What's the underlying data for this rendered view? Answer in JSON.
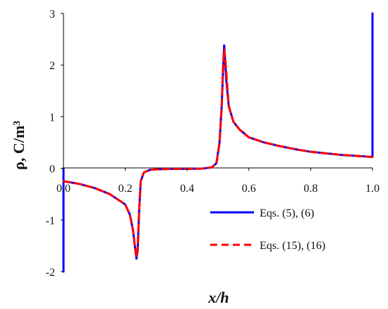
{
  "chart_data": {
    "type": "line",
    "xlabel": "x/h",
    "ylabel": "ρ, C/m³",
    "xlim": [
      0,
      1
    ],
    "ylim": [
      -2,
      3
    ],
    "x_ticks": [
      "0.0",
      "0.2",
      "0.4",
      "0.6",
      "0.8",
      "1.0"
    ],
    "y_ticks": [
      "-2",
      "-1",
      "0",
      "1",
      "2",
      "3"
    ],
    "grid": false,
    "legend": "right-lower",
    "series": [
      {
        "name": "Eqs. (5), (6)",
        "color": "#0000ff",
        "style": "solid",
        "x": [
          0.0,
          0.0,
          0.0,
          0.01,
          0.05,
          0.1,
          0.15,
          0.2,
          0.215,
          0.225,
          0.232,
          0.236,
          0.24,
          0.245,
          0.25,
          0.26,
          0.28,
          0.3,
          0.35,
          0.4,
          0.45,
          0.48,
          0.495,
          0.505,
          0.512,
          0.517,
          0.52,
          0.522,
          0.527,
          0.535,
          0.55,
          0.57,
          0.6,
          0.65,
          0.7,
          0.75,
          0.8,
          0.85,
          0.9,
          0.95,
          0.999,
          1.0,
          1.0
        ],
        "y": [
          -2.0,
          0.0,
          -0.25,
          -0.26,
          -0.3,
          -0.38,
          -0.5,
          -0.7,
          -0.9,
          -1.2,
          -1.55,
          -1.75,
          -1.6,
          -0.8,
          -0.25,
          -0.08,
          -0.03,
          -0.02,
          -0.01,
          -0.01,
          -0.005,
          0.02,
          0.1,
          0.5,
          1.2,
          2.0,
          2.38,
          2.2,
          1.7,
          1.2,
          0.9,
          0.75,
          0.6,
          0.5,
          0.43,
          0.37,
          0.32,
          0.29,
          0.26,
          0.24,
          0.22,
          0.22,
          3.0
        ]
      },
      {
        "name": "Eqs. (15), (16)",
        "color": "#ff0000",
        "style": "dashed",
        "x": [
          0.0,
          0.01,
          0.05,
          0.1,
          0.15,
          0.2,
          0.215,
          0.225,
          0.232,
          0.236,
          0.24,
          0.245,
          0.25,
          0.26,
          0.28,
          0.3,
          0.35,
          0.4,
          0.45,
          0.48,
          0.495,
          0.505,
          0.512,
          0.516,
          0.52,
          0.524,
          0.53,
          0.535,
          0.55,
          0.57,
          0.6,
          0.65,
          0.7,
          0.75,
          0.8,
          0.85,
          0.9,
          0.95,
          0.999
        ],
        "y": [
          -0.25,
          -0.26,
          -0.3,
          -0.38,
          -0.5,
          -0.7,
          -0.9,
          -1.2,
          -1.55,
          -1.72,
          -1.6,
          -0.8,
          -0.25,
          -0.08,
          -0.03,
          -0.02,
          -0.01,
          -0.01,
          -0.005,
          0.02,
          0.1,
          0.5,
          1.2,
          1.9,
          2.3,
          2.1,
          1.6,
          1.2,
          0.9,
          0.75,
          0.6,
          0.5,
          0.43,
          0.37,
          0.32,
          0.29,
          0.26,
          0.24,
          0.22
        ]
      }
    ]
  }
}
